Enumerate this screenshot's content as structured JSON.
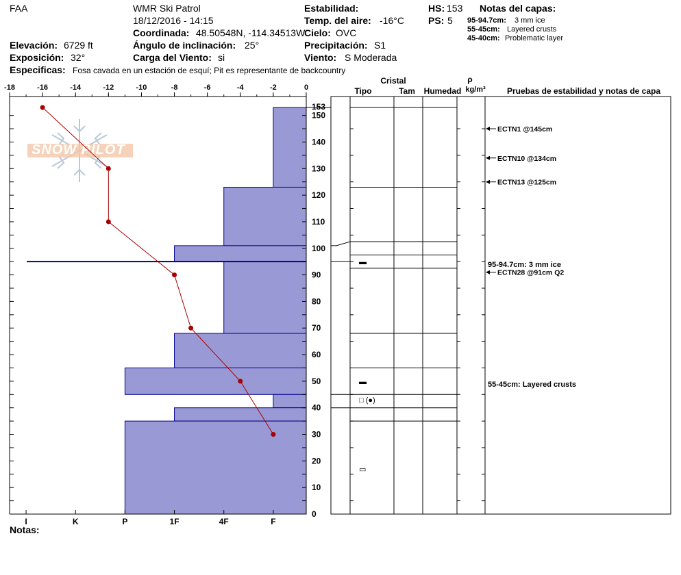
{
  "header": {
    "org": "FAA",
    "patrol": "WMR Ski Patrol",
    "datetime": "18/12/2016 - 14:15",
    "coord_label": "Coordinada:",
    "coord_value": "48.50548N, -114.34513W",
    "elev_label": "Elevación:",
    "elev_value": "6729 ft",
    "aspect_label": "Exposición:",
    "aspect_value": "32°",
    "incline_label": "Ángulo de inclinación:",
    "incline_value": "25°",
    "wind_load_label": "Carga del Viento:",
    "wind_load_value": "si",
    "specifics_label": "Especificas:",
    "specifics_value": "Fosa cavada en un estación de esquí; Pit es representante de backcountry",
    "stability_label": "Estabilidad:",
    "airtemp_label": "Temp. del aire:",
    "airtemp_value": "-16°C",
    "sky_label": "Cielo:",
    "sky_value": "OVC",
    "precip_label": "Precipitación:",
    "precip_value": "S1",
    "wind_label": "Viento:",
    "wind_value": "S Moderada",
    "hs_label": "HS:",
    "hs_value": "153",
    "ps_label": "PS:",
    "ps_value": "5",
    "layer_notes_title": "Notas del capas:",
    "layer_notes": [
      {
        "range": "95-94.7cm:",
        "text": "3 mm ice"
      },
      {
        "range": "55-45cm:",
        "text": "Layered crusts"
      },
      {
        "range": "45-40cm:",
        "text": "Problematic layer"
      }
    ],
    "notes_label": "Notas:"
  },
  "watermark": "SNOW PILOT",
  "table": {
    "crystal_label": "Cristal",
    "type_label": "Tipo",
    "size_label": "Tam",
    "moisture_label": "Humedad",
    "density_symbol": "ρ",
    "density_unit": "kg/m³",
    "tests_label": "Pruebas de estabilidad y notas de capa",
    "layer_boundaries": [
      153,
      123,
      102.5,
      97.5,
      92.5,
      68,
      55,
      45,
      40,
      35,
      0
    ],
    "grain_markers": [
      {
        "h": 95,
        "symbol": "▬"
      },
      {
        "h": 50,
        "symbol": "▬"
      },
      {
        "h": 43,
        "symbol": "□ (●)"
      },
      {
        "h": 17,
        "symbol": "▭"
      }
    ],
    "annotations": [
      {
        "h": 145,
        "text": "ECTN1 @145cm",
        "arrow": true
      },
      {
        "h": 134,
        "text": "ECTN10 @134cm",
        "arrow": true
      },
      {
        "h": 125,
        "text": "ECTN13 @125cm",
        "arrow": true
      },
      {
        "h": 94,
        "text": "95-94.7cm:  3 mm ice",
        "arrow": false
      },
      {
        "h": 91,
        "text": "ECTN28 @91cm  Q2",
        "arrow": true
      },
      {
        "h": 49,
        "text": "55-45cm:  Layered crusts",
        "arrow": false
      }
    ]
  },
  "chart_data": {
    "type": "snow-profile",
    "x_temp_ticks": [
      -18,
      -16,
      -14,
      -12,
      -10,
      -8,
      -6,
      -4,
      -2,
      0
    ],
    "x_temp_range": [
      -18,
      0
    ],
    "hardness_ticks": [
      "I",
      "K",
      "P",
      "1F",
      "4F",
      "F"
    ],
    "y_range": [
      0,
      153
    ],
    "y_ticks": [
      0,
      10,
      20,
      30,
      40,
      50,
      60,
      70,
      80,
      90,
      100,
      110,
      120,
      130,
      140,
      150
    ],
    "total_height": 153,
    "hardness_layers": [
      {
        "top": 153,
        "bottom": 123,
        "hardness_temp_equiv": -2
      },
      {
        "top": 123,
        "bottom": 101,
        "hardness_temp_equiv": -5
      },
      {
        "top": 101,
        "bottom": 95,
        "hardness_temp_equiv": -8
      },
      {
        "top": 95,
        "bottom": 68,
        "hardness_temp_equiv": -5
      },
      {
        "top": 68,
        "bottom": 55,
        "hardness_temp_equiv": -8
      },
      {
        "top": 55,
        "bottom": 45,
        "hardness_temp_equiv": -11
      },
      {
        "top": 45,
        "bottom": 40,
        "hardness_temp_equiv": -2
      },
      {
        "top": 40,
        "bottom": 35,
        "hardness_temp_equiv": -8
      },
      {
        "top": 35,
        "bottom": 0,
        "hardness_temp_equiv": -11
      }
    ],
    "temperature_profile": [
      {
        "h": 153,
        "t": -16
      },
      {
        "h": 130,
        "t": -12
      },
      {
        "h": 110,
        "t": -12
      },
      {
        "h": 90,
        "t": -8
      },
      {
        "h": 70,
        "t": -7
      },
      {
        "h": 50,
        "t": -4
      },
      {
        "h": 30,
        "t": -2
      }
    ],
    "problem_layer_h": 95,
    "colors": {
      "hardness_fill": "#9999d6",
      "temp_line": "#aa0000",
      "problem_line": "#00008b"
    }
  }
}
